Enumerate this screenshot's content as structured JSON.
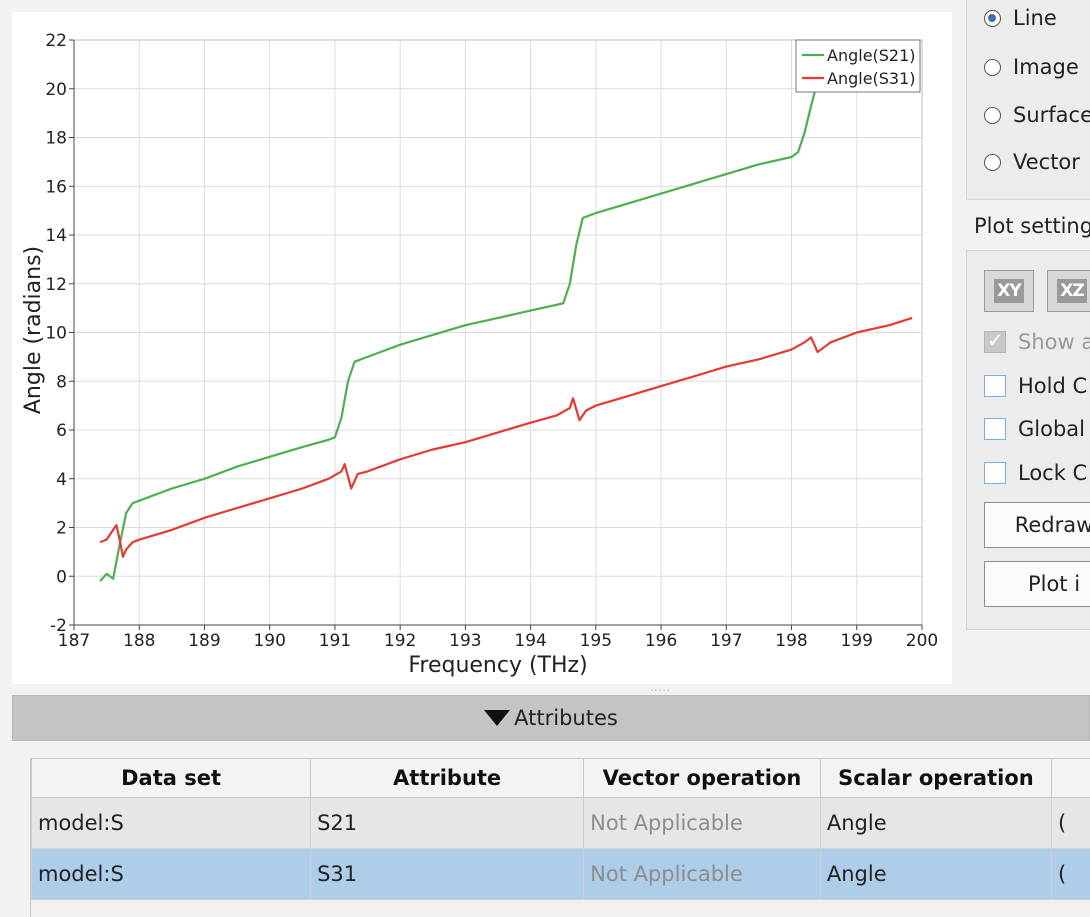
{
  "plot_types": {
    "items": [
      {
        "label": "Line",
        "selected": true
      },
      {
        "label": "Image",
        "selected": false
      },
      {
        "label": "Surface",
        "selected": false
      },
      {
        "label": "Vector",
        "selected": false
      }
    ]
  },
  "plot_settings": {
    "title": "Plot settings",
    "buttons": [
      "XY",
      "XZ"
    ],
    "checkboxes": [
      {
        "label": "Show a",
        "checked": true,
        "disabled": true
      },
      {
        "label": "Hold C",
        "checked": false
      },
      {
        "label": "Global",
        "checked": false
      },
      {
        "label": "Lock C",
        "checked": false
      }
    ],
    "redraw_label": "Redraw",
    "plot_label": "Plot i"
  },
  "attributes": {
    "header": "Attributes",
    "columns": [
      "Data set",
      "Attribute",
      "Vector operation",
      "Scalar operation",
      "("
    ],
    "rows": [
      {
        "dataset": "model:S",
        "attribute": "S21",
        "vector_op": "Not Applicable",
        "scalar_op": "Angle",
        "extra": "(",
        "selected": false
      },
      {
        "dataset": "model:S",
        "attribute": "S31",
        "vector_op": "Not Applicable",
        "scalar_op": "Angle",
        "extra": "(",
        "selected": true
      }
    ]
  },
  "chart_data": {
    "type": "line",
    "xlabel": "Frequency (THz)",
    "ylabel": "Angle (radians)",
    "xlim": [
      187,
      200
    ],
    "ylim": [
      -2,
      22
    ],
    "xticks": [
      187,
      188,
      189,
      190,
      191,
      192,
      193,
      194,
      195,
      196,
      197,
      198,
      199,
      200
    ],
    "yticks": [
      -2,
      0,
      2,
      4,
      6,
      8,
      10,
      12,
      14,
      16,
      18,
      20,
      22
    ],
    "grid": true,
    "legend_position": "top-right",
    "series": [
      {
        "name": "Angle(S21)",
        "color": "#4caf50",
        "x": [
          187.4,
          187.5,
          187.6,
          187.7,
          187.8,
          187.9,
          188.0,
          188.5,
          189.0,
          189.5,
          190.0,
          190.5,
          190.9,
          191.0,
          191.1,
          191.2,
          191.3,
          191.4,
          191.5,
          192.0,
          192.5,
          193.0,
          193.5,
          194.0,
          194.5,
          194.6,
          194.7,
          194.8,
          194.9,
          195.0,
          195.5,
          196.0,
          196.5,
          197.0,
          197.5,
          198.0,
          198.1,
          198.2,
          198.3,
          198.4,
          198.5
        ],
        "y": [
          -0.2,
          0.1,
          -0.1,
          1.3,
          2.6,
          3.0,
          3.1,
          3.6,
          4.0,
          4.5,
          4.9,
          5.3,
          5.6,
          5.7,
          6.5,
          8.0,
          8.8,
          8.9,
          9.0,
          9.5,
          9.9,
          10.3,
          10.6,
          10.9,
          11.2,
          12.0,
          13.6,
          14.7,
          14.8,
          14.9,
          15.3,
          15.7,
          16.1,
          16.5,
          16.9,
          17.2,
          17.4,
          18.2,
          19.3,
          20.3,
          21.0
        ]
      },
      {
        "name": "Angle(S31)",
        "color": "#e53935",
        "x": [
          187.4,
          187.5,
          187.6,
          187.65,
          187.7,
          187.75,
          187.8,
          187.9,
          188.0,
          188.5,
          189.0,
          189.5,
          190.0,
          190.5,
          190.9,
          191.1,
          191.15,
          191.25,
          191.35,
          191.5,
          192.0,
          192.5,
          193.0,
          193.5,
          194.0,
          194.4,
          194.6,
          194.65,
          194.75,
          194.85,
          195.0,
          195.5,
          196.0,
          196.5,
          197.0,
          197.5,
          198.0,
          198.2,
          198.3,
          198.4,
          198.5,
          198.6,
          199.0,
          199.5,
          199.85
        ],
        "y": [
          1.4,
          1.5,
          1.9,
          2.1,
          1.5,
          0.8,
          1.1,
          1.4,
          1.5,
          1.9,
          2.4,
          2.8,
          3.2,
          3.6,
          4.0,
          4.3,
          4.6,
          3.6,
          4.2,
          4.3,
          4.8,
          5.2,
          5.5,
          5.9,
          6.3,
          6.6,
          6.9,
          7.3,
          6.4,
          6.8,
          7.0,
          7.4,
          7.8,
          8.2,
          8.6,
          8.9,
          9.3,
          9.6,
          9.8,
          9.2,
          9.4,
          9.6,
          10.0,
          10.3,
          10.6
        ]
      }
    ]
  }
}
